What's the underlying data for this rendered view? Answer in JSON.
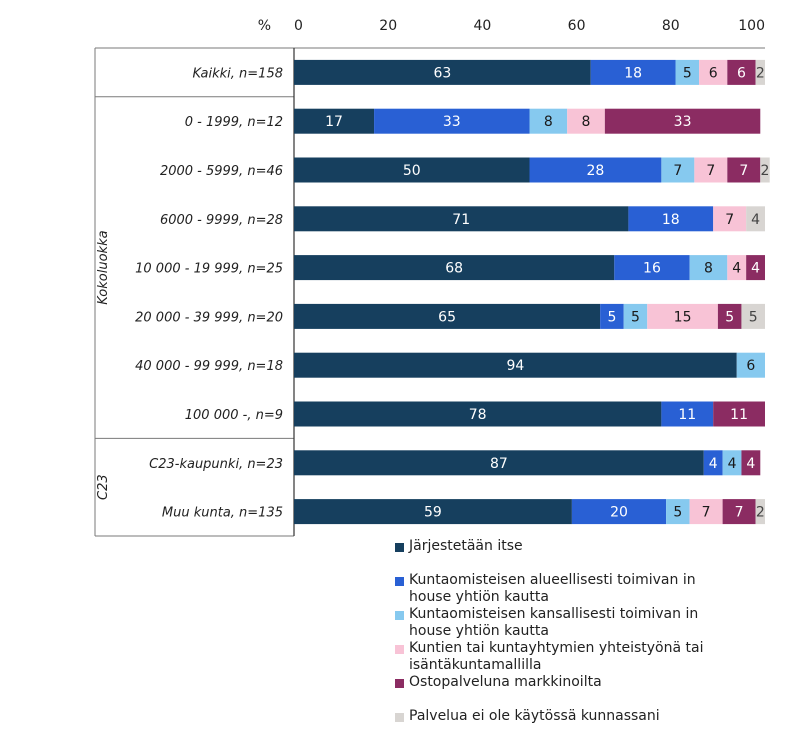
{
  "chart_data": {
    "type": "bar",
    "orientation": "horizontal",
    "stacked": true,
    "percent_symbol": "%",
    "xlim": [
      0,
      100
    ],
    "xticks": [
      "0",
      "20",
      "40",
      "60",
      "80",
      "100"
    ],
    "group_labels": [
      "Kokoluokka",
      "C23"
    ],
    "categories": [
      "Kaikki, n=158",
      "0 - 1999, n=12",
      "2000 - 5999, n=46",
      "6000 - 9999, n=28",
      "10 000 - 19 999, n=25",
      "20 000 - 39 999, n=20",
      "40 000 - 99 999, n=18",
      "100 000 -, n=9",
      "C23-kaupunki, n=23",
      "Muu kunta, n=135"
    ],
    "series": [
      {
        "name": "Järjestetään itse",
        "color": "#163f5e",
        "label_color": "#ffffff",
        "values": [
          63,
          17,
          50,
          71,
          68,
          65,
          94,
          78,
          87,
          59
        ]
      },
      {
        "name": "Kuntaomisteisen alueellisesti toimivan in house yhtiön kautta",
        "color": "#2960d4",
        "label_color": "#ffffff",
        "values": [
          18,
          33,
          28,
          18,
          16,
          5,
          0,
          11,
          4,
          20
        ]
      },
      {
        "name": "Kuntaomisteisen kansallisesti toimivan in house yhtiön kautta",
        "color": "#86c9ef",
        "label_color": "#1a1a1a",
        "values": [
          5,
          8,
          7,
          0,
          8,
          5,
          6,
          0,
          4,
          5
        ]
      },
      {
        "name": "Kuntien tai kuntayhtymien yhteistyönä tai isäntäkuntamallilla",
        "color": "#f8c3d6",
        "label_color": "#1a1a1a",
        "values": [
          6,
          8,
          7,
          7,
          4,
          15,
          0,
          0,
          0,
          7
        ]
      },
      {
        "name": "Ostopalveluna markkinoilta",
        "color": "#8b2c62",
        "label_color": "#ffffff",
        "values": [
          6,
          33,
          7,
          0,
          4,
          5,
          0,
          11,
          4,
          7
        ]
      },
      {
        "name": "Palvelua ei ole käytössä kunnassani",
        "color": "#d8d5d2",
        "label_color": "#444444",
        "values": [
          2,
          0,
          2,
          4,
          0,
          5,
          0,
          0,
          0,
          2
        ]
      }
    ]
  },
  "legend": {
    "items": [
      {
        "color": "#163f5e",
        "lines": [
          "Järjestetään itse"
        ]
      },
      {
        "color": "#2960d4",
        "lines": [
          "Kuntaomisteisen alueellisesti toimivan in",
          "house yhtiön kautta"
        ]
      },
      {
        "color": "#86c9ef",
        "lines": [
          "Kuntaomisteisen kansallisesti toimivan in",
          "house yhtiön kautta"
        ]
      },
      {
        "color": "#f8c3d6",
        "lines": [
          "Kuntien tai kuntayhtymien yhteistyönä tai",
          "isäntäkuntamallilla"
        ]
      },
      {
        "color": "#8b2c62",
        "lines": [
          "Ostopalveluna markkinoilta"
        ]
      },
      {
        "color": "#d8d5d2",
        "lines": [
          "Palvelua ei ole käytössä kunnassani"
        ]
      }
    ]
  }
}
